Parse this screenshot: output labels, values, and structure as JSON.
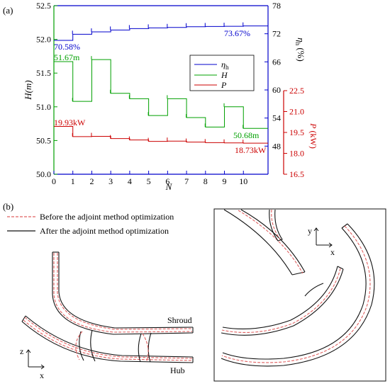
{
  "panel_a_label": "(a)",
  "panel_b_label": "(b)",
  "chart_data": {
    "type": "line",
    "title": "",
    "xlabel": "N",
    "x_ticks": [
      "0",
      "1",
      "2",
      "3",
      "4",
      "5",
      "6",
      "7",
      "8",
      "9",
      "10"
    ],
    "xlim": [
      0,
      11.3
    ],
    "axes": {
      "H": {
        "label": "H(m)",
        "color": "#00a000",
        "lim": [
          50.0,
          52.5
        ],
        "ticks": [
          "50.0",
          "50.5",
          "51.0",
          "51.5",
          "52.0",
          "52.5"
        ]
      },
      "eta": {
        "label": "ηh (%)",
        "label_main": "η",
        "label_sub": "h",
        "label_unit": "(%)",
        "color": "#0000cc",
        "lim": [
          42,
          78
        ],
        "ticks": [
          "48",
          "54",
          "60",
          "66",
          "72",
          "78"
        ]
      },
      "P": {
        "label": "P (kW)",
        "label_main": "P",
        "label_unit": "(kW)",
        "color": "#cc0000",
        "lim": [
          16.5,
          22.5
        ],
        "ticks": [
          "16.5",
          "18.0",
          "19.5",
          "21.0",
          "22.5"
        ]
      }
    },
    "series": [
      {
        "name": "ηh",
        "name_main": "η",
        "name_sub": "h",
        "axis": "eta",
        "color": "#0000cc",
        "x": [
          0,
          1,
          2,
          3,
          4,
          5,
          6,
          7,
          8,
          9,
          10,
          11.3
        ],
        "y": [
          70.58,
          71.9,
          72.4,
          72.8,
          73.1,
          73.25,
          73.35,
          73.5,
          73.55,
          73.6,
          73.67,
          73.67
        ]
      },
      {
        "name": "H",
        "name_main": "H",
        "axis": "H",
        "color": "#00a000",
        "x": [
          0,
          1,
          2,
          3,
          4,
          5,
          6,
          7,
          8,
          9,
          10,
          11.3
        ],
        "y": [
          51.67,
          51.08,
          51.7,
          51.2,
          51.12,
          50.87,
          51.12,
          50.84,
          50.7,
          51.0,
          50.68,
          50.68
        ]
      },
      {
        "name": "P",
        "name_main": "P",
        "axis": "P",
        "color": "#cc0000",
        "x": [
          0,
          1,
          2,
          3,
          4,
          5,
          6,
          7,
          8,
          9,
          10,
          11.3
        ],
        "y": [
          19.93,
          19.2,
          19.22,
          19.06,
          18.96,
          18.86,
          18.88,
          18.81,
          18.77,
          18.75,
          18.73,
          18.73
        ]
      }
    ],
    "annotations": [
      {
        "text": "70.58%",
        "color": "#0000cc"
      },
      {
        "text": "51.67m",
        "color": "#00a000"
      },
      {
        "text": "19.93kW",
        "color": "#cc0000"
      },
      {
        "text": "73.67%",
        "color": "#0000cc"
      },
      {
        "text": "50.68m",
        "color": "#00a000"
      },
      {
        "text": "18.73kW",
        "color": "#cc0000"
      }
    ],
    "legend_position": "center-right"
  },
  "panel_b": {
    "legend_before": "Before the adjoint method optimization",
    "legend_after": "After the adjoint method optimization",
    "before_color": "#e06060",
    "after_color": "#111111",
    "label_shroud": "Shroud",
    "label_hub": "Hub",
    "axis_z": "z",
    "axis_x": "x",
    "axis_y2": "y",
    "axis_x2": "x"
  }
}
